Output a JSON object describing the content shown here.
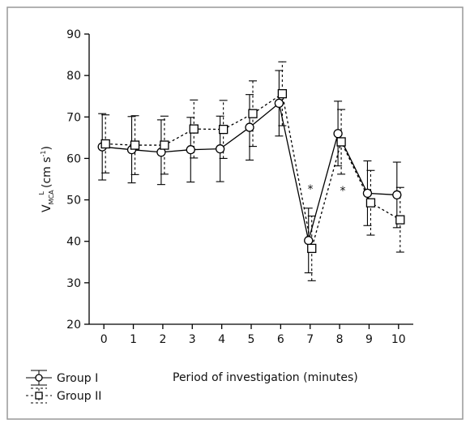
{
  "chart_data": {
    "type": "line",
    "xlabel": "Period of investigation (minutes)",
    "ylabel": {
      "main": "V",
      "sub": "MCA",
      "sup": "L",
      "unit": "(cm s",
      "unit_sup": "-1",
      "close": ")"
    },
    "x": [
      0,
      1,
      2,
      3,
      4,
      5,
      6,
      7,
      8,
      9,
      10
    ],
    "series": [
      {
        "name": "Group I",
        "color": "#000000",
        "marker": "circle",
        "dash": "solid",
        "values": [
          62.8,
          62.1,
          61.5,
          62.1,
          62.3,
          67.5,
          73.3,
          40.2,
          66.0,
          51.6,
          51.2
        ],
        "errors": [
          8.0,
          8.0,
          7.8,
          7.8,
          7.9,
          7.9,
          7.9,
          7.8,
          7.8,
          7.8,
          7.9
        ]
      },
      {
        "name": "Group II",
        "color": "#000000",
        "marker": "square",
        "dash": "dotted",
        "values": [
          63.5,
          63.2,
          63.2,
          67.1,
          67.0,
          70.8,
          75.6,
          38.3,
          64.0,
          49.3,
          45.2
        ],
        "errors": [
          7.0,
          7.1,
          7.0,
          7.0,
          7.0,
          7.9,
          7.7,
          7.8,
          7.8,
          7.8,
          7.8
        ]
      }
    ],
    "annotations": [
      {
        "text": "*"
      },
      {
        "text": "*"
      }
    ],
    "xlim": [
      -0.5,
      10.5
    ],
    "xticks": [
      0,
      1,
      2,
      3,
      4,
      5,
      6,
      7,
      8,
      9,
      10
    ],
    "ylim": [
      20,
      90
    ],
    "yticks": [
      20,
      30,
      40,
      50,
      60,
      70,
      80,
      90
    ],
    "legend": "bottom-left"
  }
}
